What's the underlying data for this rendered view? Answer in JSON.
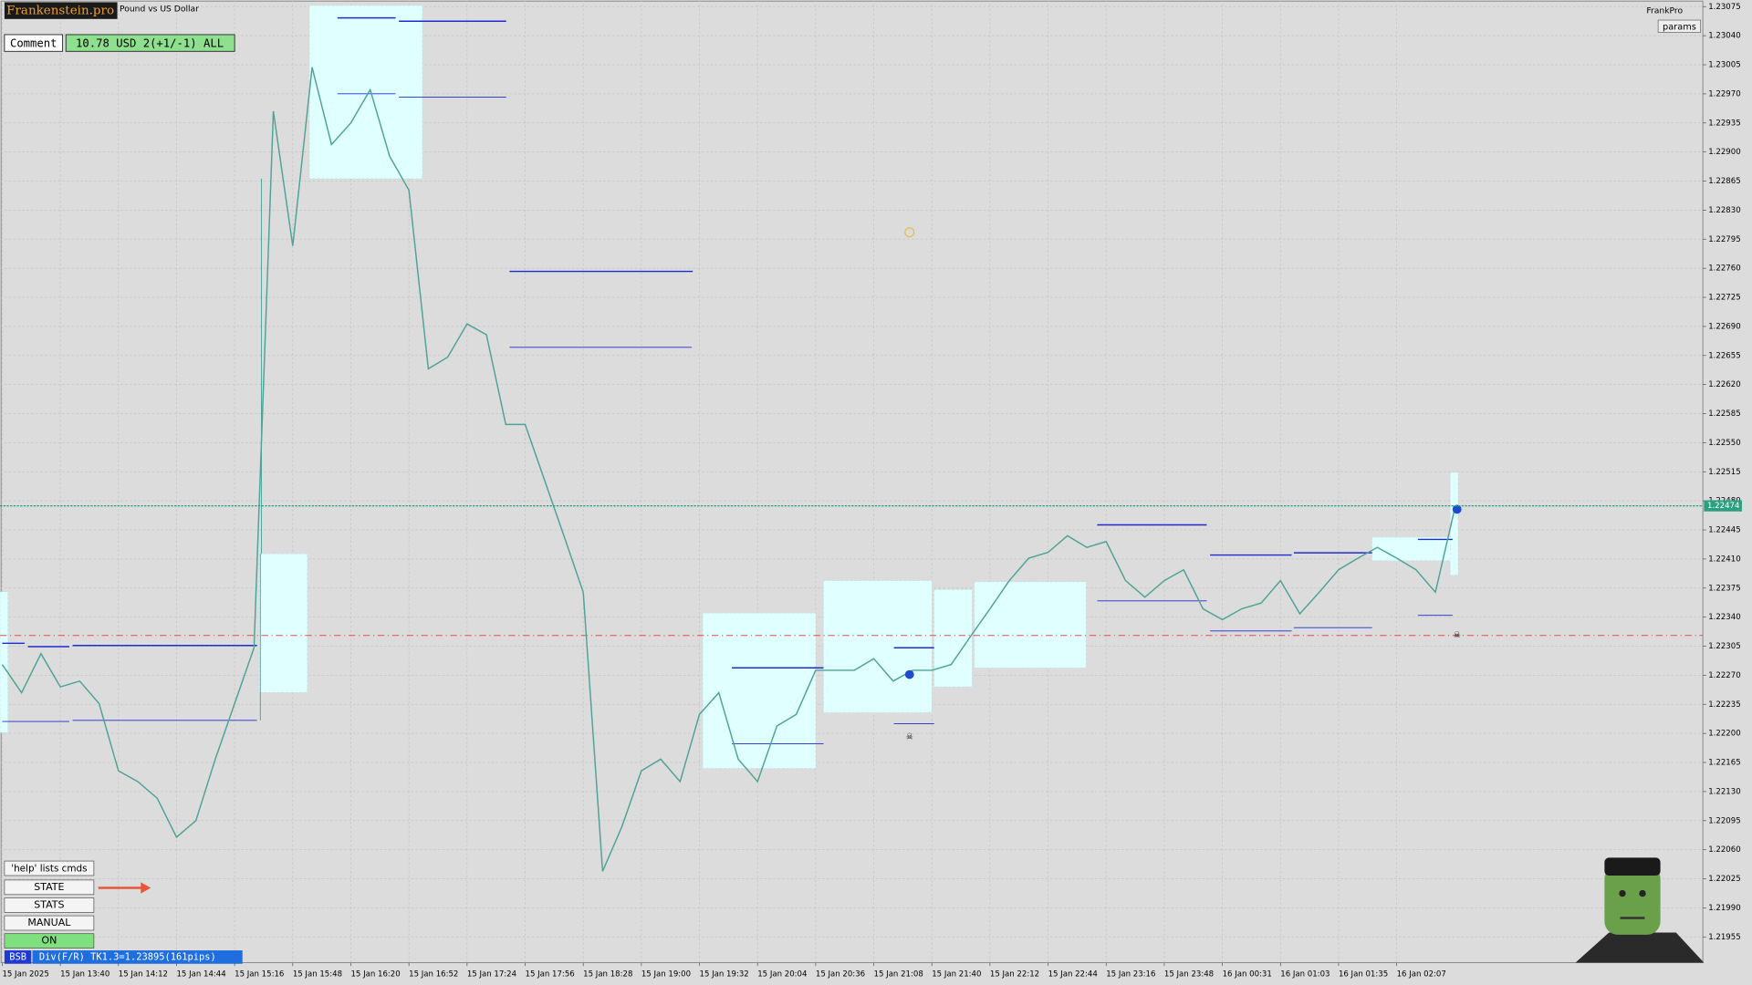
{
  "header": {
    "logo": "Frankenstein.pro",
    "symbol": "Pound vs US Dollar",
    "brand": "FrankPro",
    "params": "params"
  },
  "comment": {
    "label": "Comment",
    "value": "10.78 USD 2(+1/-1) ALL"
  },
  "panel": {
    "help": "'help' lists cmds",
    "buttons": [
      "STATE",
      "STATS",
      "MANUAL",
      "ON"
    ]
  },
  "status": {
    "tag": "BSB",
    "text": "Div(F/R) TK1.3=1.23895(161pips)"
  },
  "chart_data": {
    "type": "line",
    "color": "#4fa396",
    "grid": true,
    "current_price": 1.22474,
    "categories": [
      "15 Jan 2025",
      null,
      null,
      "15 Jan 13:40",
      null,
      null,
      "15 Jan 14:12",
      null,
      null,
      "15 Jan 14:44",
      null,
      null,
      "15 Jan 15:16",
      null,
      null,
      "15 Jan 15:48",
      null,
      null,
      "15 Jan 16:20",
      null,
      null,
      "15 Jan 16:52",
      null,
      null,
      "15 Jan 17:24",
      null,
      null,
      "15 Jan 17:56",
      null,
      null,
      "15 Jan 18:28",
      null,
      null,
      "15 Jan 19:00",
      null,
      null,
      "15 Jan 19:32",
      null,
      null,
      "15 Jan 20:04",
      null,
      null,
      "15 Jan 20:36",
      null,
      null,
      "15 Jan 21:08",
      null,
      null,
      "15 Jan 21:40",
      null,
      null,
      "15 Jan 22:12",
      null,
      null,
      "15 Jan 22:44",
      null,
      null,
      "15 Jan 23:16",
      null,
      null,
      "15 Jan 23:48",
      null,
      null,
      "16 Jan 00:31",
      null,
      null,
      "16 Jan 01:03",
      null,
      null,
      "16 Jan 01:35",
      null,
      null,
      "16 Jan 02:07",
      null,
      null,
      null
    ],
    "values": [
      1.22283,
      1.22249,
      1.22296,
      1.22256,
      1.22263,
      1.22236,
      1.22155,
      1.22142,
      1.22122,
      1.22075,
      1.22095,
      1.22169,
      1.22236,
      1.22303,
      1.22949,
      1.22787,
      1.23002,
      1.22909,
      1.22935,
      1.22975,
      1.22895,
      1.22854,
      1.22639,
      1.22653,
      1.22693,
      1.2268,
      1.22572,
      1.22572,
      1.22505,
      1.22438,
      1.2237,
      1.22034,
      1.22088,
      1.22155,
      1.22169,
      1.22142,
      1.22223,
      1.22249,
      1.22169,
      1.22142,
      1.22209,
      1.22223,
      1.22276,
      1.22276,
      1.22276,
      1.2229,
      1.22263,
      1.22276,
      1.22276,
      1.22283,
      1.22317,
      1.2235,
      1.22384,
      1.22411,
      1.22418,
      1.22438,
      1.22424,
      1.22431,
      1.22384,
      1.22364,
      1.22384,
      1.22397,
      1.2235,
      1.22337,
      1.2235,
      1.22357,
      1.22384,
      1.22344,
      1.2237,
      1.22397,
      1.22411,
      1.22424,
      1.22411,
      1.22397,
      1.2237,
      1.22471
    ],
    "ylim": [
      1.21924,
      1.23083
    ],
    "yticks": [
      1.23075,
      {
        "value": 1.2304,
        "label": "1.23040"
      },
      1.23005,
      {
        "value": 1.2297,
        "label": "1.22970"
      },
      1.22935,
      {
        "value": 1.229,
        "label": "1.22900"
      },
      1.22865,
      {
        "value": 1.2283,
        "label": "1.22830"
      },
      1.22795,
      {
        "value": 1.2276,
        "label": "1.22760"
      },
      1.22725,
      {
        "value": 1.2269,
        "label": "1.22690"
      },
      1.22655,
      {
        "value": 1.2262,
        "label": "1.22620"
      },
      1.22585,
      {
        "value": 1.2255,
        "label": "1.22550"
      },
      1.22515,
      {
        "value": 1.2248,
        "label": "1.22480"
      },
      1.22445,
      {
        "value": 1.2241,
        "label": "1.22410"
      },
      1.22375,
      {
        "value": 1.2234,
        "label": "1.22340"
      },
      1.22305,
      {
        "value": 1.2227,
        "label": "1.22270"
      },
      1.22235,
      {
        "value": 1.222,
        "label": "1.22200"
      },
      1.22165,
      {
        "value": 1.2213,
        "label": "1.22130"
      },
      1.22095,
      {
        "value": 1.2206,
        "label": "1.22060"
      },
      1.22025,
      {
        "value": 1.2199,
        "label": "1.21990"
      },
      1.21955
    ]
  }
}
